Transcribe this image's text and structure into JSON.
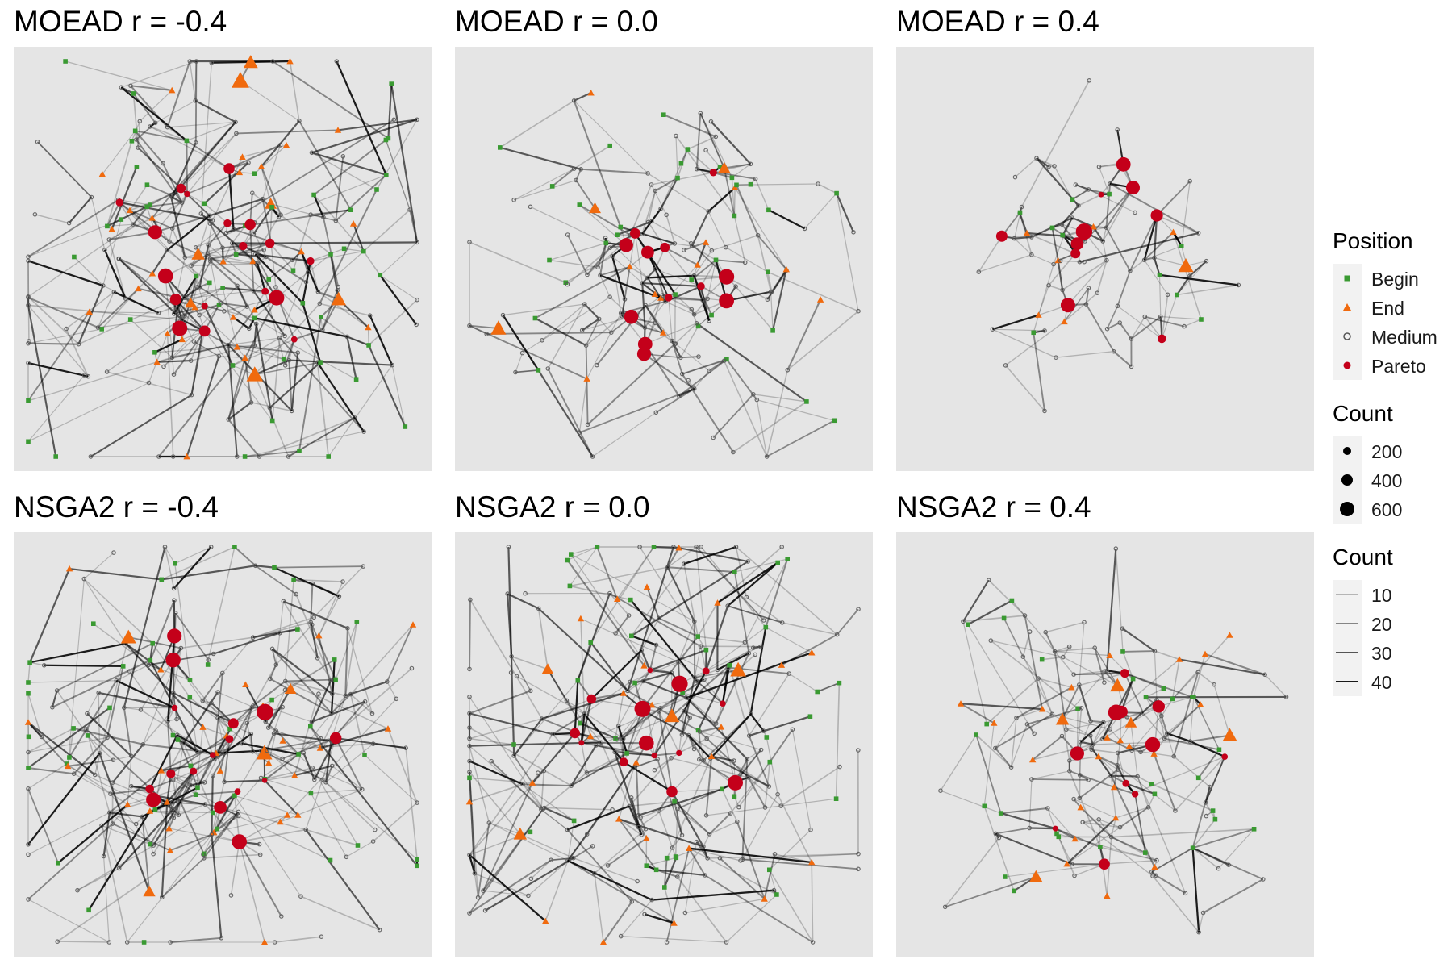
{
  "panels": [
    {
      "title": "MOEAD r = -0.4",
      "density": "dense",
      "hub_count": 18
    },
    {
      "title": "MOEAD r = 0.0",
      "density": "medium",
      "hub_count": 12
    },
    {
      "title": "MOEAD r = 0.4",
      "density": "sparse",
      "hub_count": 10
    },
    {
      "title": "NSGA2 r = -0.4",
      "density": "dense",
      "hub_count": 16
    },
    {
      "title": "NSGA2 r = 0.0",
      "density": "dense",
      "hub_count": 14
    },
    {
      "title": "NSGA2 r = 0.4",
      "density": "medium",
      "hub_count": 11
    }
  ],
  "legend": {
    "position": {
      "title": "Position",
      "items": [
        {
          "label": "Begin",
          "shape": "square",
          "color": "#3a9a32"
        },
        {
          "label": "End",
          "shape": "triangle",
          "color": "#f06a0e"
        },
        {
          "label": "Medium",
          "shape": "open-circle",
          "color": "#555555"
        },
        {
          "label": "Pareto",
          "shape": "circle",
          "color": "#c4001a"
        }
      ]
    },
    "node_count": {
      "title": "Count",
      "items": [
        {
          "label": "200",
          "value": 200
        },
        {
          "label": "400",
          "value": 400
        },
        {
          "label": "600",
          "value": 600
        }
      ]
    },
    "edge_count": {
      "title": "Count",
      "items": [
        {
          "label": "10",
          "value": 10
        },
        {
          "label": "20",
          "value": 20
        },
        {
          "label": "30",
          "value": 30
        },
        {
          "label": "40",
          "value": 40
        }
      ]
    }
  },
  "colors": {
    "panel_background": "#e5e5e5",
    "begin": "#3a9a32",
    "end": "#f06a0e",
    "medium": "#555555",
    "pareto": "#c4001a"
  }
}
